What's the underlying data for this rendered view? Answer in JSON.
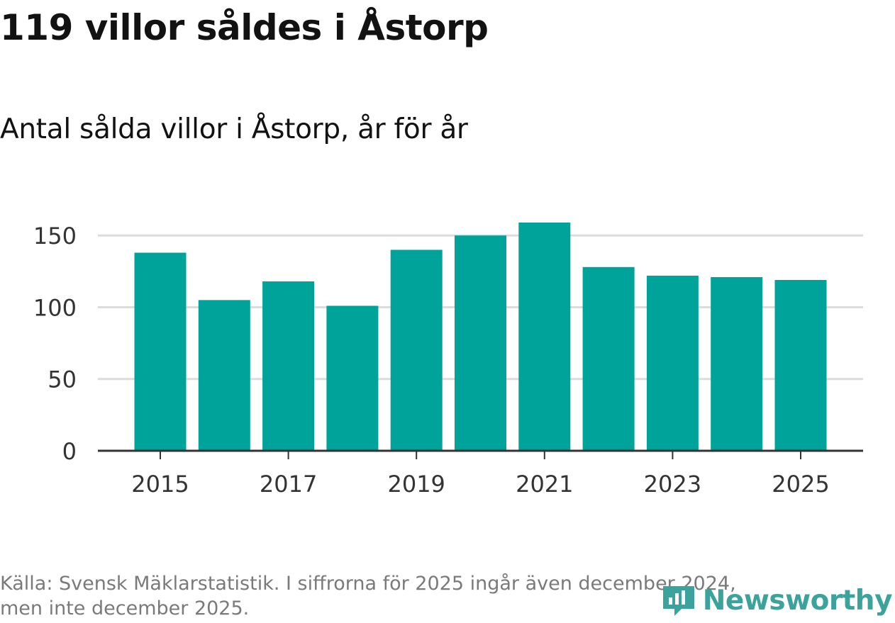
{
  "header": {
    "title": "119 villor såldes i Åstorp",
    "subtitle": "Antal sålda villor i Åstorp, år för år"
  },
  "footer": {
    "source_line1": "Källa: Svensk Mäklarstatistik. I siffrorna för 2025 ingår även december 2024,",
    "source_line2": "men inte december 2025."
  },
  "logo": {
    "text": "Newsworthy",
    "icon": "newsworthy-logo-icon"
  },
  "colors": {
    "bar": "#00a39a",
    "grid": "#dcdcdc",
    "axis": "#333333",
    "text": "#333333",
    "brand": "#3ba29c"
  },
  "chart_data": {
    "type": "bar",
    "title": "Antal sålda villor i Åstorp, år för år",
    "xlabel": "",
    "ylabel": "",
    "categories": [
      "2015",
      "2016",
      "2017",
      "2018",
      "2019",
      "2020",
      "2021",
      "2022",
      "2023",
      "2024",
      "2025"
    ],
    "values": [
      138,
      105,
      118,
      101,
      140,
      150,
      159,
      128,
      122,
      121,
      119
    ],
    "x_tick_labels": [
      "2015",
      "2017",
      "2019",
      "2021",
      "2023",
      "2025"
    ],
    "y_ticks": [
      0,
      50,
      100,
      150
    ],
    "ylim": [
      0,
      159
    ],
    "grid": true,
    "legend": "none"
  }
}
